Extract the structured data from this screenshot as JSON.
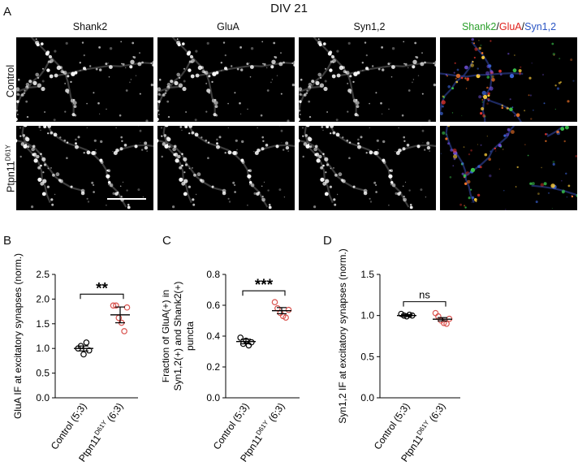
{
  "figure": {
    "title": "DIV 21",
    "panel_letters": {
      "a": "A",
      "b": "B",
      "c": "C",
      "d": "D"
    },
    "columns": [
      "Shank2",
      "GluA",
      "Syn1,2"
    ],
    "merge_label": {
      "p1": "Shank2",
      "s1": "/",
      "p2": "GluA",
      "s2": "/",
      "p3": "Syn1,2"
    },
    "merge_colors": {
      "shank2": "#2ca02c",
      "glua": "#e0201b",
      "syn": "#2a55c4"
    },
    "rows": {
      "control": "Control",
      "mutant_base": "Ptpn11",
      "mutant_sup": "D61Y"
    },
    "scale_bar": "scale-bar"
  },
  "chart_data": [
    {
      "type": "scatter",
      "panel": "B",
      "ylabel": "GluA IF at excitatory synapses (norm.)",
      "ylim": [
        0,
        2.5
      ],
      "yticks": [
        "0.0",
        "0.5",
        "1.0",
        "1.5",
        "2.0",
        "2.5"
      ],
      "categories": [
        {
          "base": "Control (5;3)",
          "sup": "",
          "after": ""
        },
        {
          "base": "Ptpn11",
          "sup": "D61Y",
          "after": " (6;3)"
        }
      ],
      "significance": "**",
      "series": [
        {
          "color": "#000000",
          "values": [
            1.0,
            1.05,
            0.88,
            1.12,
            0.96
          ],
          "mean": 1.0,
          "sem": 0.05
        },
        {
          "color": "#d9534f",
          "values": [
            1.87,
            1.87,
            1.62,
            1.52,
            1.35,
            1.83
          ],
          "mean": 1.68,
          "sem": 0.16
        }
      ]
    },
    {
      "type": "scatter",
      "panel": "C",
      "ylabel_lines": [
        "Fraction of GluA(+) in",
        "Syn1,2(+) and Shank2(+)",
        "puncta"
      ],
      "ylim": [
        0,
        0.8
      ],
      "yticks": [
        "0.0",
        "0.2",
        "0.4",
        "0.6",
        "0.8"
      ],
      "categories": [
        {
          "base": "Control (5;3)",
          "sup": "",
          "after": ""
        },
        {
          "base": "Ptpn11",
          "sup": "D61Y",
          "after": " (6;3)"
        }
      ],
      "significance": "***",
      "series": [
        {
          "color": "#000000",
          "values": [
            0.39,
            0.35,
            0.37,
            0.34,
            0.36
          ],
          "mean": 0.365,
          "sem": 0.015
        },
        {
          "color": "#d9534f",
          "values": [
            0.62,
            0.58,
            0.55,
            0.53,
            0.52,
            0.57
          ],
          "mean": 0.565,
          "sem": 0.02
        }
      ]
    },
    {
      "type": "scatter",
      "panel": "D",
      "ylabel": "Syn1,2 IF at excitatory synapses (norm.)",
      "ylim": [
        0,
        1.5
      ],
      "yticks": [
        "0.0",
        "0.5",
        "1.0",
        "1.5"
      ],
      "categories": [
        {
          "base": "Control (5;3)",
          "sup": "",
          "after": ""
        },
        {
          "base": "Ptpn11",
          "sup": "D61Y",
          "after": " (6;3)"
        }
      ],
      "significance": "ns",
      "series": [
        {
          "color": "#000000",
          "values": [
            1.02,
            1.0,
            0.99,
            1.01,
            1.0
          ],
          "mean": 1.0,
          "sem": 0.01
        },
        {
          "color": "#d9534f",
          "values": [
            1.03,
            0.99,
            0.94,
            0.91,
            0.9,
            0.96
          ],
          "mean": 0.955,
          "sem": 0.02
        }
      ]
    }
  ]
}
